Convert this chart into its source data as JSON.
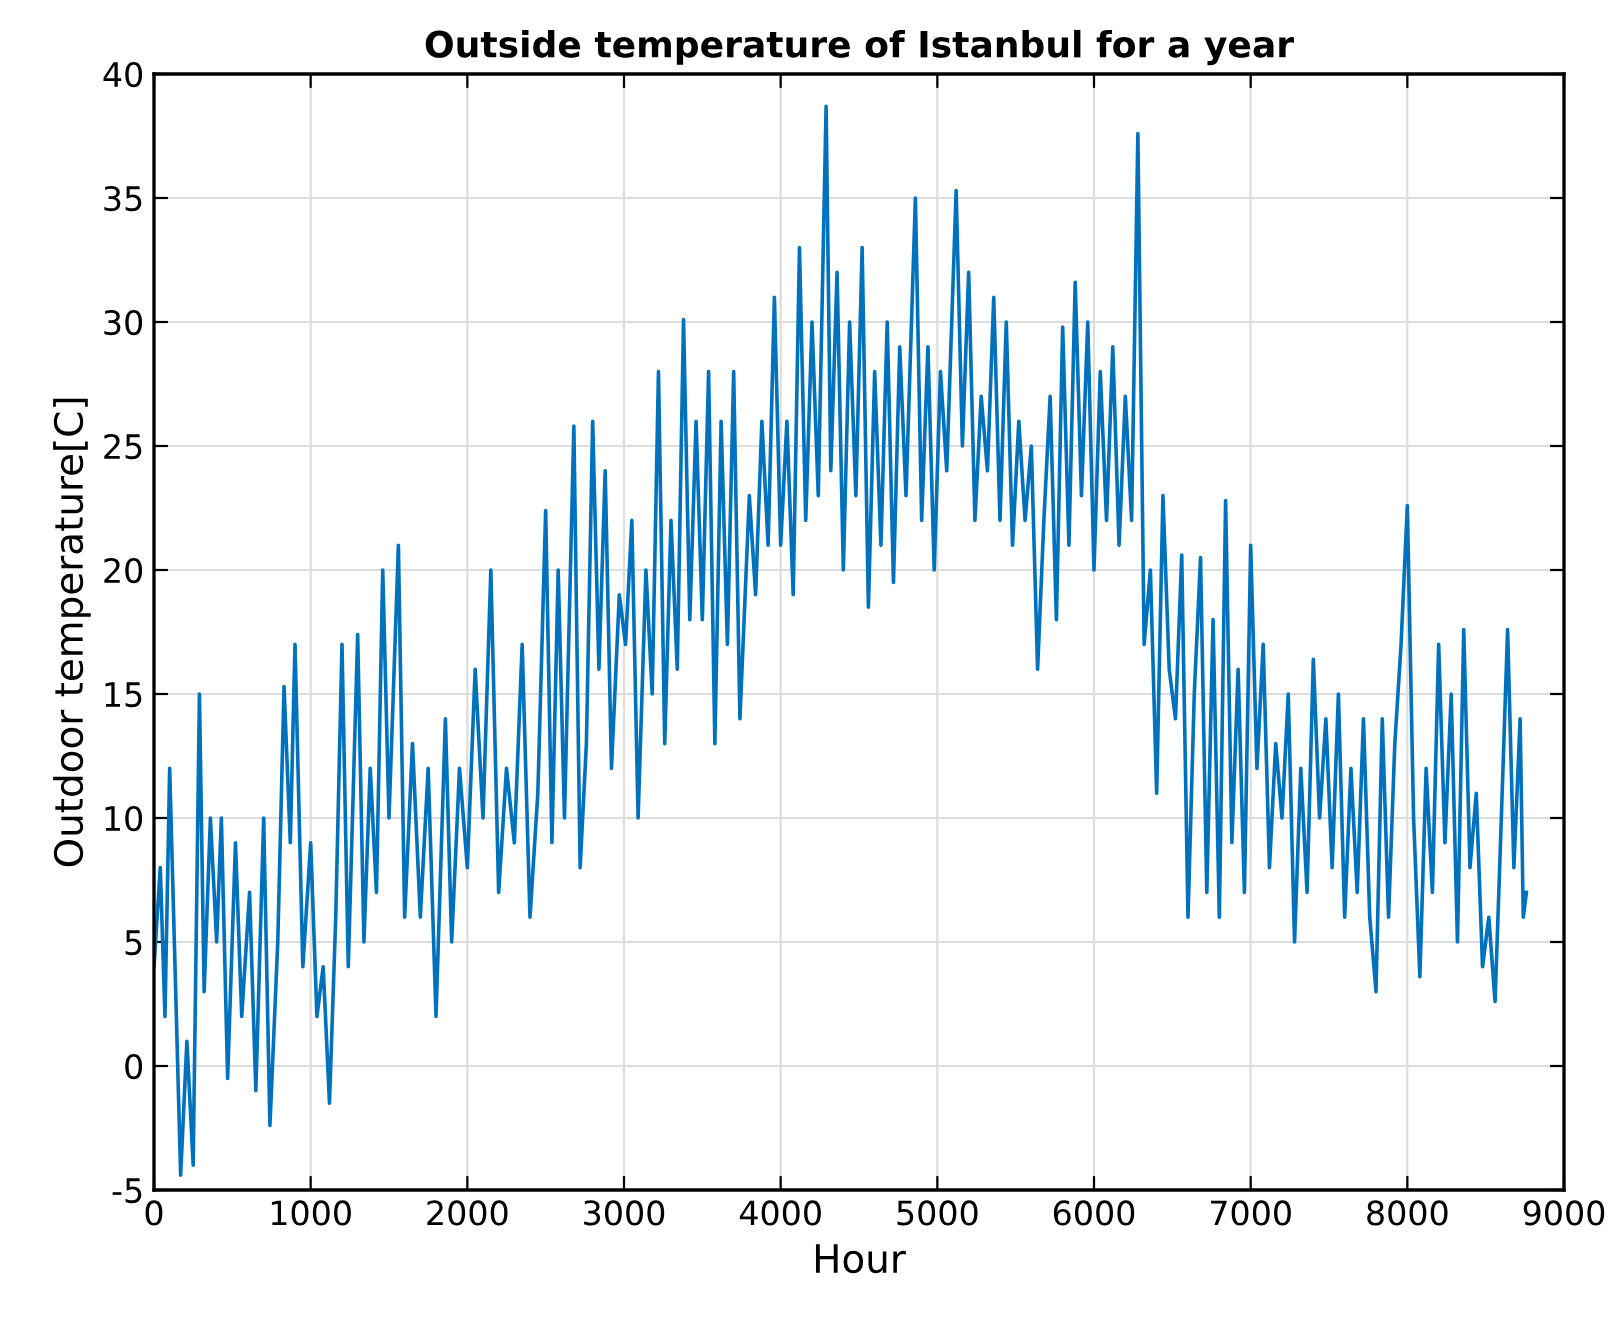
{
  "chart_data": {
    "type": "line",
    "title": "Outside temperature of Istanbul for a year",
    "xlabel": "Hour",
    "ylabel": "Outdoor temperature[C]",
    "xlim": [
      0,
      9000
    ],
    "xticks": [
      0,
      1000,
      2000,
      3000,
      4000,
      5000,
      6000,
      7000,
      8000,
      9000
    ],
    "ylim": [
      -5,
      40
    ],
    "yticks": [
      -5,
      0,
      5,
      10,
      15,
      20,
      25,
      30,
      35,
      40
    ],
    "grid": true,
    "series": [
      {
        "color": "#0072bd",
        "x": [
          0,
          40,
          70,
          100,
          130,
          170,
          210,
          250,
          290,
          320,
          360,
          400,
          430,
          470,
          520,
          560,
          610,
          650,
          700,
          740,
          790,
          830,
          870,
          900,
          950,
          1000,
          1040,
          1080,
          1120,
          1160,
          1200,
          1240,
          1300,
          1340,
          1380,
          1420,
          1460,
          1500,
          1560,
          1600,
          1650,
          1700,
          1750,
          1800,
          1860,
          1900,
          1950,
          2000,
          2050,
          2100,
          2150,
          2200,
          2250,
          2300,
          2350,
          2400,
          2450,
          2500,
          2540,
          2580,
          2620,
          2680,
          2720,
          2760,
          2800,
          2840,
          2880,
          2920,
          2970,
          3010,
          3050,
          3090,
          3140,
          3180,
          3220,
          3260,
          3300,
          3340,
          3380,
          3420,
          3460,
          3500,
          3540,
          3580,
          3620,
          3660,
          3700,
          3740,
          3800,
          3840,
          3880,
          3920,
          3960,
          4000,
          4040,
          4080,
          4120,
          4160,
          4200,
          4240,
          4290,
          4320,
          4360,
          4400,
          4440,
          4480,
          4520,
          4560,
          4600,
          4640,
          4680,
          4720,
          4760,
          4800,
          4860,
          4900,
          4940,
          4980,
          5020,
          5060,
          5120,
          5160,
          5200,
          5240,
          5280,
          5320,
          5360,
          5400,
          5440,
          5480,
          5520,
          5560,
          5600,
          5640,
          5680,
          5720,
          5760,
          5800,
          5840,
          5880,
          5920,
          5960,
          6000,
          6040,
          6080,
          6120,
          6160,
          6200,
          6240,
          6280,
          6320,
          6360,
          6400,
          6440,
          6480,
          6520,
          6560,
          6600,
          6640,
          6680,
          6720,
          6760,
          6800,
          6840,
          6880,
          6920,
          6960,
          7000,
          7040,
          7080,
          7120,
          7160,
          7200,
          7240,
          7280,
          7320,
          7360,
          7400,
          7440,
          7480,
          7520,
          7560,
          7600,
          7640,
          7680,
          7720,
          7760,
          7800,
          7840,
          7880,
          7920,
          7960,
          8000,
          8040,
          8080,
          8120,
          8160,
          8200,
          8240,
          8280,
          8320,
          8360,
          8400,
          8440,
          8480,
          8520,
          8560,
          8600,
          8640,
          8680,
          8720,
          8740,
          8760
        ],
        "values": [
          4,
          8,
          2,
          12,
          5,
          -4.4,
          1,
          -4,
          15,
          3,
          10,
          5,
          10,
          -0.5,
          9,
          2,
          7,
          -1,
          10,
          -2.4,
          5,
          15.3,
          9,
          17,
          4,
          9,
          2,
          4,
          -1.5,
          6,
          17,
          4,
          17.4,
          5,
          12,
          7,
          20,
          10,
          21,
          6,
          13,
          6,
          12,
          2,
          14,
          5,
          12,
          8,
          16,
          10,
          20,
          7,
          12,
          9,
          17,
          6,
          11,
          22.4,
          9,
          20,
          10,
          25.8,
          8,
          13,
          26,
          16,
          24,
          12,
          19,
          17,
          22,
          10,
          20,
          15,
          28,
          13,
          22,
          16,
          30.1,
          18,
          26,
          18,
          28,
          13,
          26,
          17,
          28,
          14,
          23,
          19,
          26,
          21,
          31,
          21,
          26,
          19,
          33,
          22,
          30,
          23,
          38.7,
          24,
          32,
          20,
          30,
          23,
          33,
          18.5,
          28,
          21,
          30,
          19.5,
          29,
          23,
          35,
          22,
          29,
          20,
          28,
          24,
          35.3,
          25,
          32,
          22,
          27,
          24,
          31,
          22,
          30,
          21,
          26,
          22,
          25,
          16,
          22,
          27,
          18,
          29.8,
          21,
          31.6,
          23,
          30,
          20,
          28,
          22,
          29,
          21,
          27,
          22,
          37.6,
          17,
          20,
          11,
          23,
          16,
          14,
          20.6,
          6,
          15,
          20.5,
          7,
          18,
          6,
          22.8,
          9,
          16,
          7,
          21,
          12,
          17,
          8,
          13,
          10,
          15,
          5,
          12,
          7,
          16.4,
          10,
          14,
          8,
          15,
          6,
          12,
          7,
          14,
          6,
          3,
          14,
          6,
          13,
          17,
          22.6,
          10,
          3.6,
          12,
          7,
          17,
          9,
          15,
          5,
          17.6,
          8,
          11,
          4,
          6,
          2.6,
          10,
          17.6,
          8,
          14,
          6,
          7
        ]
      }
    ]
  }
}
